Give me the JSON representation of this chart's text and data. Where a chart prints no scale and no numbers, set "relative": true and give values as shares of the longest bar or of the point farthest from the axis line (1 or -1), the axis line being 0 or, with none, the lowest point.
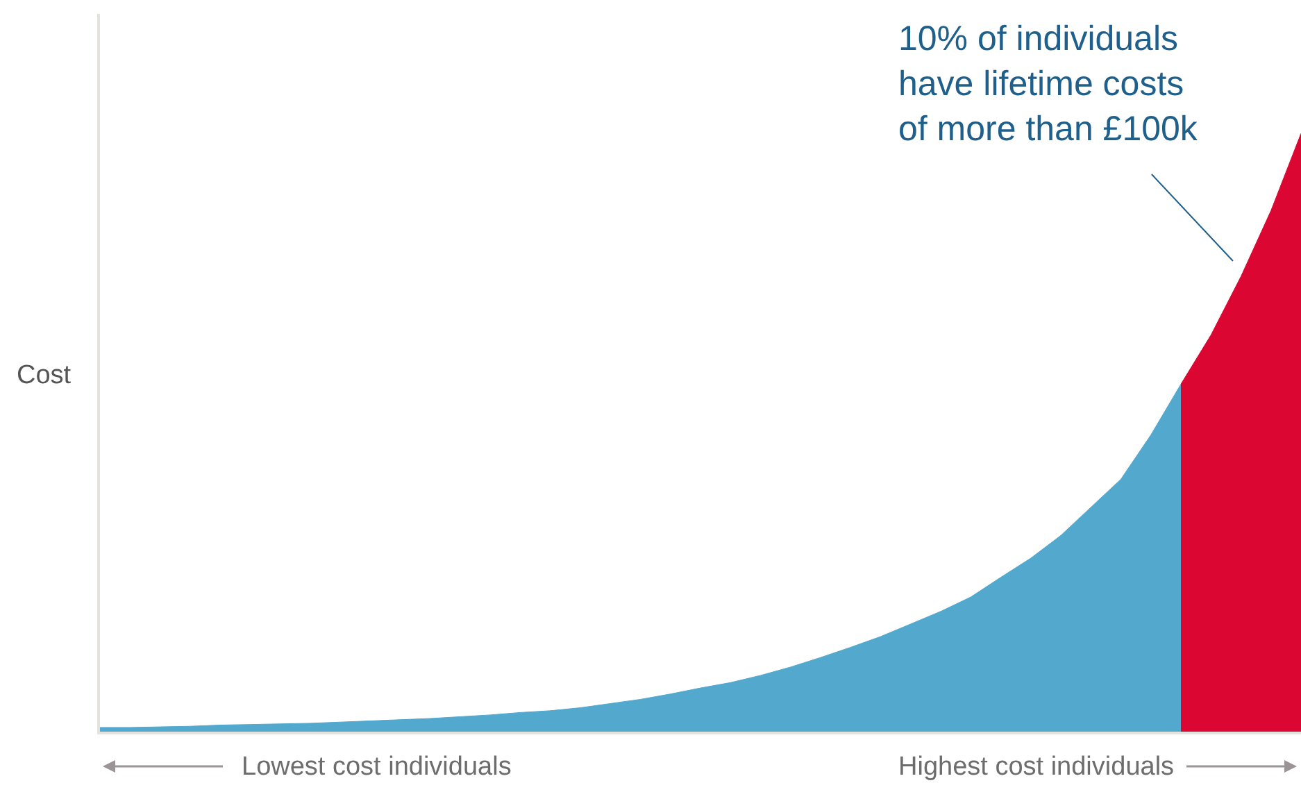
{
  "chart_data": {
    "type": "area",
    "relative": true,
    "ylabel": "Cost",
    "categories": [
      null,
      null,
      null,
      null,
      null,
      null,
      null,
      null,
      null,
      null,
      null,
      null,
      null,
      null,
      null,
      null,
      null,
      null,
      null,
      null,
      null,
      null,
      null,
      null,
      null,
      null,
      null,
      null,
      null,
      null,
      null,
      null,
      null,
      null,
      null,
      null,
      null,
      null,
      null,
      null,
      null
    ],
    "series": [
      {
        "color": "#53a8ce",
        "values": [
          0.007,
          0.007,
          0.008,
          0.009,
          0.011,
          0.012,
          0.013,
          0.014,
          0.016,
          0.018,
          0.02,
          0.022,
          0.025,
          0.028,
          0.032,
          0.035,
          0.04,
          0.047,
          0.054,
          0.063,
          0.073,
          0.082,
          0.094,
          0.108,
          0.124,
          0.141,
          0.159,
          0.18,
          0.201,
          0.225,
          0.258,
          0.29,
          0.328,
          0.375,
          0.422,
          0.496,
          0.581,
          null,
          null,
          null,
          null
        ]
      },
      {
        "color": "#dc0632",
        "values": [
          null,
          null,
          null,
          null,
          null,
          null,
          null,
          null,
          null,
          null,
          null,
          null,
          null,
          null,
          null,
          null,
          null,
          null,
          null,
          null,
          null,
          null,
          null,
          null,
          null,
          null,
          null,
          null,
          null,
          null,
          null,
          null,
          null,
          null,
          null,
          null,
          0.581,
          0.663,
          0.761,
          0.871,
          1.0
        ]
      }
    ],
    "annotations": [
      "10% of individuals\nhave lifetime costs\nof more than £100k",
      "Lowest cost individuals",
      "Highest cost individuals"
    ]
  }
}
